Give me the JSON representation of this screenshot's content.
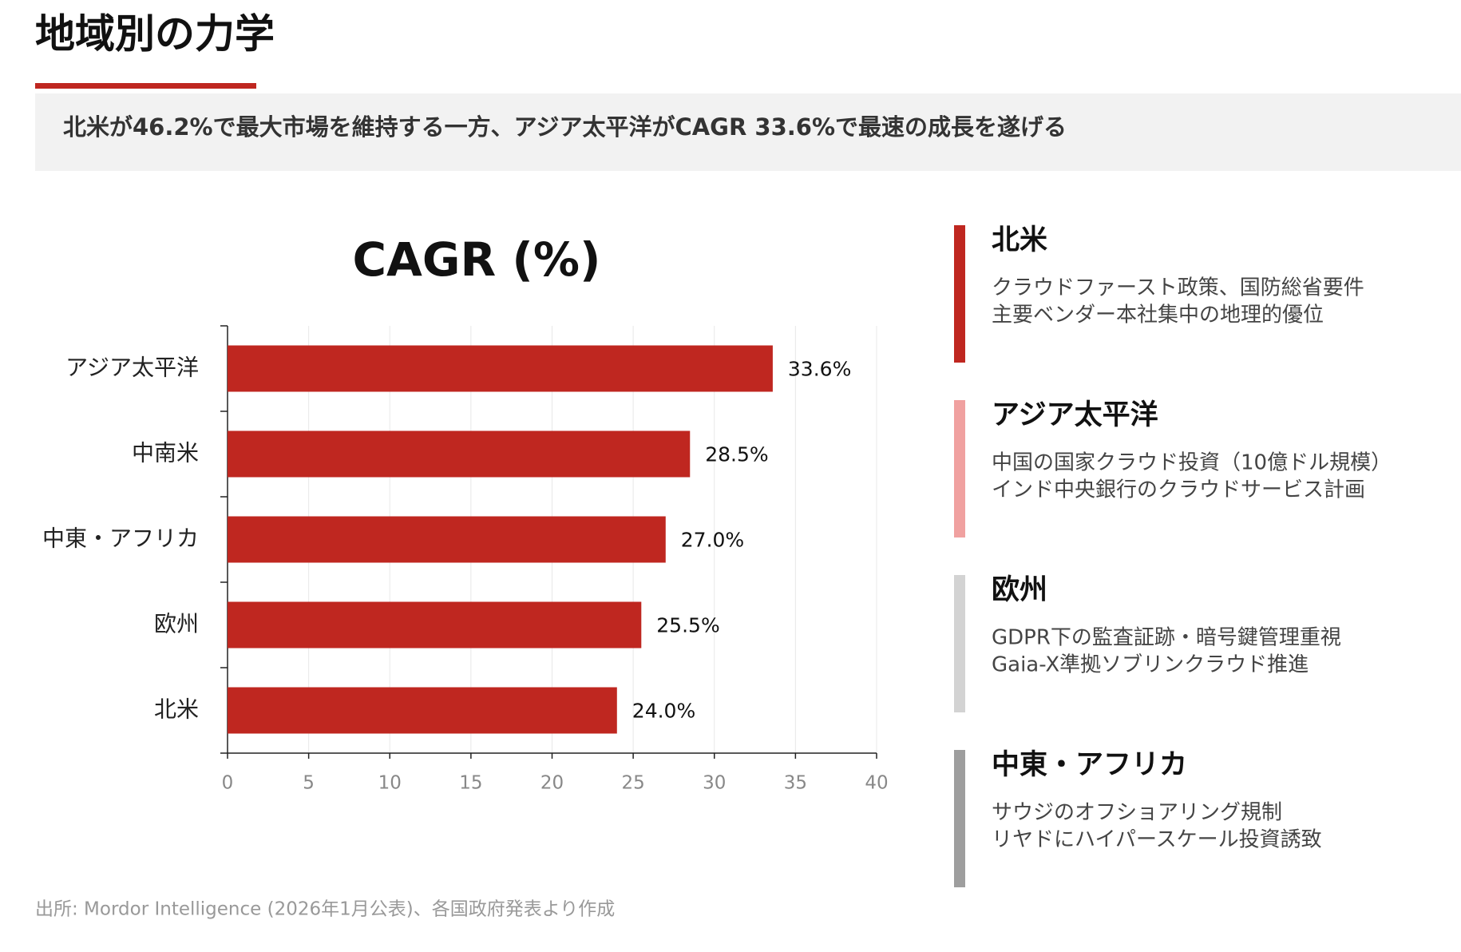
{
  "header": {
    "title": "地域別の力学",
    "subtitle": "北米が46.2%で最大市場を維持する一方、アジア太平洋がCAGR 33.6%で最速の成長を遂げる"
  },
  "chart_data": {
    "type": "bar",
    "orientation": "horizontal",
    "title": "CAGR (%)",
    "categories": [
      "アジア太平洋",
      "中南米",
      "中東・アフリカ",
      "欧州",
      "北米"
    ],
    "values": [
      33.6,
      28.5,
      27.0,
      25.5,
      24.0
    ],
    "value_labels": [
      "33.6%",
      "28.5%",
      "27.0%",
      "25.5%",
      "24.0%"
    ],
    "color": "#bf2720",
    "xlim": [
      0,
      40
    ],
    "xticks": [
      0,
      5,
      10,
      15,
      20,
      25,
      30,
      35,
      40
    ],
    "grid": true
  },
  "panel": [
    {
      "title": "北米",
      "color": "#bf2720",
      "lines": [
        "クラウドファースト政策、国防総省要件",
        "主要ベンダー本社集中の地理的優位"
      ]
    },
    {
      "title": "アジア太平洋",
      "color": "#f0a1a0",
      "lines": [
        "中国の国家クラウド投資（10億ドル規模）",
        "インド中央銀行のクラウドサービス計画"
      ]
    },
    {
      "title": "欧州",
      "color": "#d3d3d3",
      "lines": [
        "GDPR下の監査証跡・暗号鍵管理重視",
        "Gaia-X準拠ソブリンクラウド推進"
      ]
    },
    {
      "title": "中東・アフリカ",
      "color": "#9e9e9e",
      "lines": [
        "サウジのオフショアリング規制",
        "リヤドにハイパースケール投資誘致"
      ]
    }
  ],
  "source": "出所: Mordor Intelligence (2026年1月公表)、各国政府発表より作成"
}
